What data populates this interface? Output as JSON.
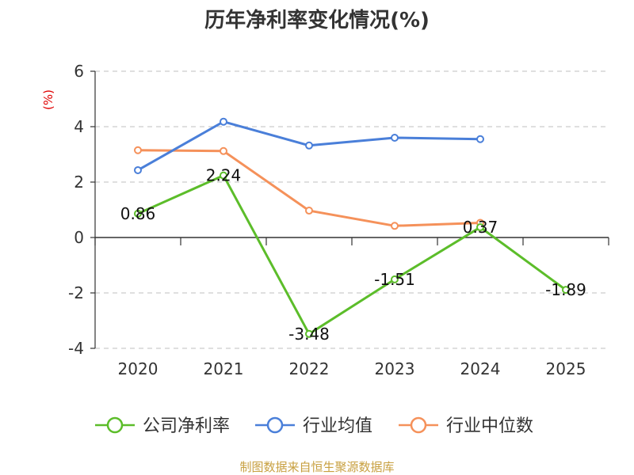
{
  "chart_data": {
    "type": "line",
    "title": "历年净利率变化情况(%)",
    "ylabel": "(%)",
    "categories": [
      "2020",
      "2021",
      "2022",
      "2023",
      "2024",
      "2025"
    ],
    "ylim": [
      -4,
      6
    ],
    "yticks": [
      "6",
      "4",
      "2",
      "0",
      "-2",
      "-4"
    ],
    "grid": true,
    "legend_position": "bottom",
    "series": [
      {
        "name": "公司净利率",
        "color": "#5cbd2a",
        "values": [
          0.86,
          2.24,
          -3.48,
          -1.51,
          0.37,
          -1.89
        ],
        "labels": [
          "0.86",
          "2.24",
          "-3.48",
          "-1.51",
          "0.37",
          "-1.89"
        ]
      },
      {
        "name": "行业均值",
        "color": "#4a7fd9",
        "values": [
          2.43,
          4.18,
          3.32,
          3.6,
          3.55,
          null
        ]
      },
      {
        "name": "行业中位数",
        "color": "#f5915a",
        "values": [
          3.15,
          3.12,
          0.97,
          0.42,
          0.53,
          null
        ]
      }
    ]
  },
  "source": "制图数据来自恒生聚源数据库"
}
